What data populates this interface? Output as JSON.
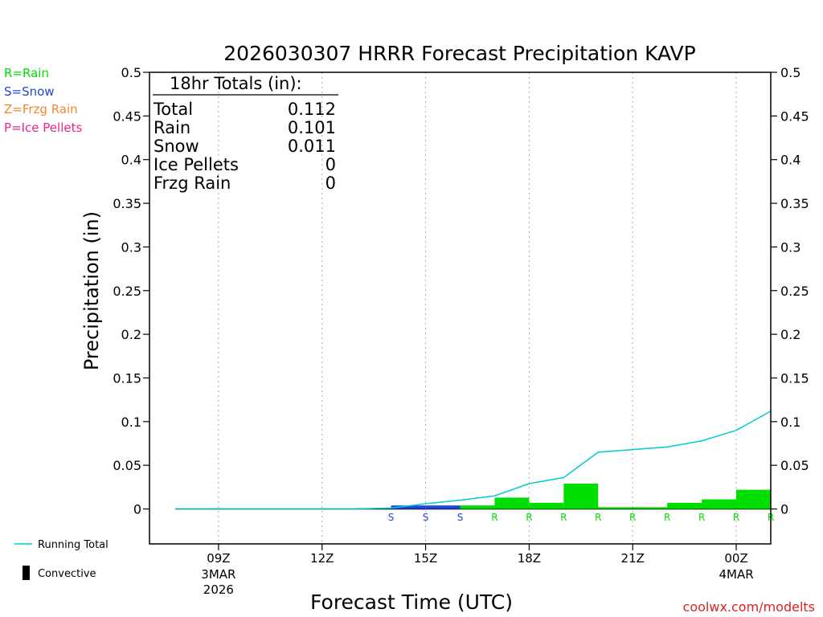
{
  "chart_data": {
    "type": "bar",
    "title": "2026030307 HRRR Forecast Precipitation KAVP",
    "xlabel": "Forecast Time (UTC)",
    "ylabel": "Precipitation (in)",
    "ylim": [
      -0.04,
      0.5
    ],
    "y_ticks": [
      "0.5",
      "0.45",
      "0.4",
      "0.35",
      "0.3",
      "0.25",
      "0.2",
      "0.15",
      "0.1",
      "0.05",
      "0"
    ],
    "y_tick_values": [
      0.5,
      0.45,
      0.4,
      0.35,
      0.3,
      0.25,
      0.2,
      0.15,
      0.1,
      0.05,
      0
    ],
    "xlim_hours": [
      7.0,
      25.0
    ],
    "x_ticks": [
      {
        "hour": 9,
        "label": "09Z",
        "sub1": "3MAR",
        "sub2": "2026"
      },
      {
        "hour": 12,
        "label": "12Z",
        "sub1": "",
        "sub2": ""
      },
      {
        "hour": 15,
        "label": "15Z",
        "sub1": "",
        "sub2": ""
      },
      {
        "hour": 18,
        "label": "18Z",
        "sub1": "",
        "sub2": ""
      },
      {
        "hour": 21,
        "label": "21Z",
        "sub1": "",
        "sub2": ""
      },
      {
        "hour": 24,
        "label": "00Z",
        "sub1": "4MAR",
        "sub2": ""
      }
    ],
    "hours": [
      8,
      9,
      10,
      11,
      12,
      13,
      14,
      15,
      16,
      17,
      18,
      19,
      20,
      21,
      22,
      23,
      24,
      25
    ],
    "hourly_precip": [
      0,
      0,
      0,
      0,
      0,
      0,
      0.001,
      0.004,
      0.004,
      0.004,
      0.013,
      0.007,
      0.029,
      0.002,
      0.002,
      0.007,
      0.011,
      0.022
    ],
    "ptype": [
      "",
      "",
      "",
      "",
      "",
      "",
      "S",
      "S",
      "S",
      "R",
      "R",
      "R",
      "R",
      "R",
      "R",
      "R",
      "R",
      "R"
    ],
    "running_total": [
      0,
      0,
      0,
      0,
      0,
      0,
      0.001,
      0.006,
      0.01,
      0.015,
      0.029,
      0.036,
      0.065,
      0.068,
      0.071,
      0.078,
      0.09,
      0.112
    ]
  },
  "totals": {
    "header": "18hr Totals (in):",
    "rows": [
      {
        "label": "Total",
        "value": "0.112"
      },
      {
        "label": "Rain",
        "value": "0.101"
      },
      {
        "label": "Snow",
        "value": "0.011"
      },
      {
        "label": "Ice Pellets",
        "value": "0"
      },
      {
        "label": "Frzg Rain",
        "value": "0"
      }
    ]
  },
  "legend": {
    "rain": "R=Rain",
    "snow": "S=Snow",
    "frzg": "Z=Frzg Rain",
    "ice": "P=Ice Pellets",
    "running_total": "Running Total",
    "convective": "Convective"
  },
  "credit": "coolwx.com/modelts",
  "colors": {
    "rain": "#00dd00",
    "snow": "#2244dd",
    "frzg": "#ee8833",
    "ice": "#ee2288",
    "running_total": "#00cccc",
    "credit": "#dd2222"
  }
}
